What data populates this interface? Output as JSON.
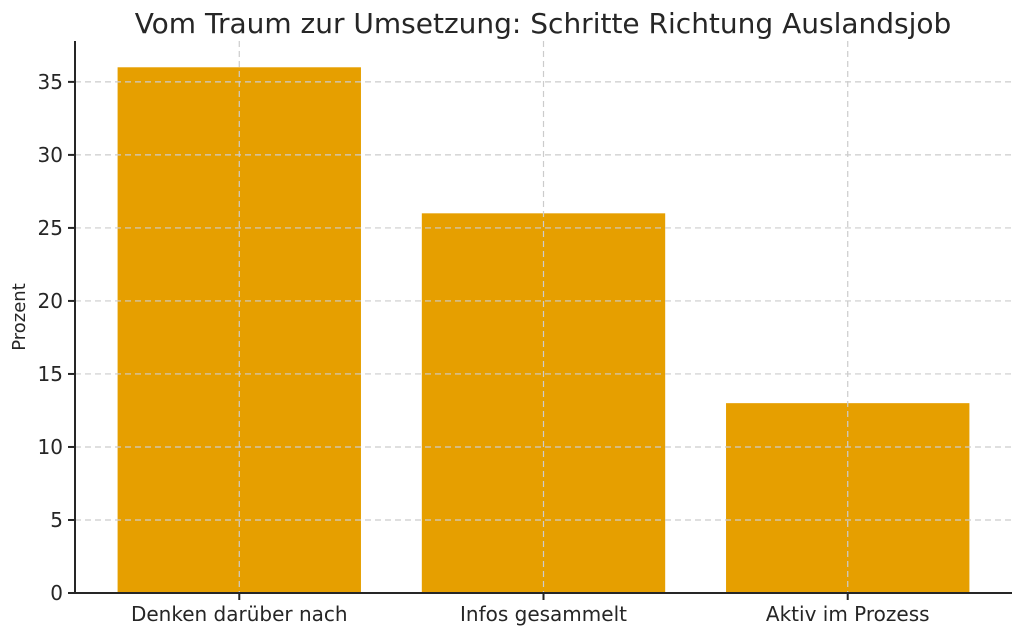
{
  "chart_data": {
    "type": "bar",
    "title": "Vom Traum zur Umsetzung: Schritte Richtung Auslandsjob",
    "xlabel": "",
    "ylabel": "Prozent",
    "categories": [
      "Denken darüber nach",
      "Infos gesammelt",
      "Aktiv im Prozess"
    ],
    "values": [
      36,
      26,
      13
    ],
    "yticks": [
      0,
      5,
      10,
      15,
      20,
      25,
      30,
      35
    ],
    "ylim": [
      0,
      37.8
    ],
    "bar_width": 0.8,
    "bar_color": "#E69F00",
    "grid": true,
    "grid_style": "dashed",
    "grid_color": "#cccccc",
    "axis_color": "#262626",
    "text_color": "#262626",
    "background_color": "#ffffff",
    "legend": "none"
  }
}
